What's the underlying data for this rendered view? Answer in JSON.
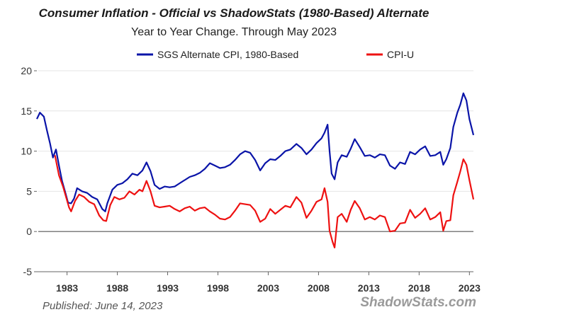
{
  "chart_data": {
    "type": "line",
    "title": "Consumer Inflation - Official vs ShadowStats (1980-Based) Alternate",
    "subtitle": "Year to Year Change. Through May 2023",
    "published": "Published: June 14, 2023",
    "watermark": "ShadowStats.com",
    "xlim": [
      1980.0,
      2023.4
    ],
    "ylim": [
      -5,
      20
    ],
    "yticks": [
      "-5",
      "0",
      "5",
      "10",
      "15",
      "20"
    ],
    "xticks": [
      "1983",
      "1988",
      "1993",
      "1998",
      "2003",
      "2008",
      "2013",
      "2018",
      "2023"
    ],
    "grid": true,
    "legend_position": "top",
    "series": [
      {
        "name": "SGS Alternate CPI, 1980-Based",
        "color": "#0a14a8",
        "points": [
          [
            1980.0,
            14.0
          ],
          [
            1980.3,
            14.8
          ],
          [
            1980.7,
            14.3
          ],
          [
            1981.0,
            12.6
          ],
          [
            1981.3,
            11.0
          ],
          [
            1981.6,
            9.2
          ],
          [
            1981.9,
            10.2
          ],
          [
            1982.2,
            8.2
          ],
          [
            1982.5,
            6.3
          ],
          [
            1982.8,
            5.0
          ],
          [
            1983.1,
            3.6
          ],
          [
            1983.4,
            3.5
          ],
          [
            1983.7,
            4.1
          ],
          [
            1984.0,
            5.4
          ],
          [
            1984.5,
            5.0
          ],
          [
            1985.0,
            4.8
          ],
          [
            1985.5,
            4.3
          ],
          [
            1986.0,
            4.0
          ],
          [
            1986.5,
            2.8
          ],
          [
            1986.8,
            2.5
          ],
          [
            1987.0,
            3.5
          ],
          [
            1987.5,
            5.2
          ],
          [
            1988.0,
            5.8
          ],
          [
            1988.5,
            6.0
          ],
          [
            1989.0,
            6.5
          ],
          [
            1989.5,
            7.2
          ],
          [
            1990.0,
            7.0
          ],
          [
            1990.5,
            7.6
          ],
          [
            1990.9,
            8.6
          ],
          [
            1991.3,
            7.5
          ],
          [
            1991.7,
            5.8
          ],
          [
            1992.2,
            5.3
          ],
          [
            1992.7,
            5.6
          ],
          [
            1993.2,
            5.5
          ],
          [
            1993.7,
            5.6
          ],
          [
            1994.2,
            6.0
          ],
          [
            1994.7,
            6.4
          ],
          [
            1995.2,
            6.8
          ],
          [
            1995.7,
            7.0
          ],
          [
            1996.2,
            7.3
          ],
          [
            1996.7,
            7.8
          ],
          [
            1997.2,
            8.5
          ],
          [
            1997.7,
            8.2
          ],
          [
            1998.2,
            7.9
          ],
          [
            1998.7,
            8.0
          ],
          [
            1999.2,
            8.3
          ],
          [
            1999.7,
            8.9
          ],
          [
            2000.2,
            9.6
          ],
          [
            2000.7,
            10.0
          ],
          [
            2001.2,
            9.8
          ],
          [
            2001.7,
            8.9
          ],
          [
            2002.2,
            7.6
          ],
          [
            2002.7,
            8.5
          ],
          [
            2003.2,
            9.0
          ],
          [
            2003.7,
            8.9
          ],
          [
            2004.2,
            9.4
          ],
          [
            2004.7,
            10.0
          ],
          [
            2005.2,
            10.2
          ],
          [
            2005.8,
            10.9
          ],
          [
            2006.3,
            10.4
          ],
          [
            2006.8,
            9.6
          ],
          [
            2007.3,
            10.2
          ],
          [
            2007.8,
            11.0
          ],
          [
            2008.3,
            11.6
          ],
          [
            2008.6,
            12.3
          ],
          [
            2008.9,
            13.3
          ],
          [
            2009.1,
            10.0
          ],
          [
            2009.3,
            7.2
          ],
          [
            2009.6,
            6.5
          ],
          [
            2009.9,
            8.6
          ],
          [
            2010.3,
            9.5
          ],
          [
            2010.8,
            9.3
          ],
          [
            2011.2,
            10.3
          ],
          [
            2011.6,
            11.5
          ],
          [
            2012.1,
            10.5
          ],
          [
            2012.6,
            9.4
          ],
          [
            2013.1,
            9.5
          ],
          [
            2013.6,
            9.2
          ],
          [
            2014.1,
            9.6
          ],
          [
            2014.6,
            9.5
          ],
          [
            2015.1,
            8.2
          ],
          [
            2015.6,
            7.8
          ],
          [
            2016.1,
            8.6
          ],
          [
            2016.6,
            8.4
          ],
          [
            2017.1,
            9.9
          ],
          [
            2017.6,
            9.6
          ],
          [
            2018.1,
            10.2
          ],
          [
            2018.6,
            10.6
          ],
          [
            2019.1,
            9.4
          ],
          [
            2019.6,
            9.5
          ],
          [
            2020.1,
            9.9
          ],
          [
            2020.4,
            8.3
          ],
          [
            2020.7,
            9.0
          ],
          [
            2021.1,
            10.4
          ],
          [
            2021.4,
            13.0
          ],
          [
            2021.8,
            14.8
          ],
          [
            2022.1,
            15.8
          ],
          [
            2022.4,
            17.2
          ],
          [
            2022.7,
            16.3
          ],
          [
            2023.0,
            14.0
          ],
          [
            2023.4,
            12.0
          ]
        ]
      },
      {
        "name": "CPI-U",
        "color": "#ee1111",
        "points": [
          [
            1981.8,
            9.5
          ],
          [
            1982.2,
            7.0
          ],
          [
            1982.6,
            5.6
          ],
          [
            1982.9,
            4.3
          ],
          [
            1983.2,
            3.0
          ],
          [
            1983.4,
            2.5
          ],
          [
            1983.8,
            3.8
          ],
          [
            1984.2,
            4.6
          ],
          [
            1984.7,
            4.3
          ],
          [
            1985.2,
            3.7
          ],
          [
            1985.7,
            3.4
          ],
          [
            1986.2,
            2.0
          ],
          [
            1986.6,
            1.4
          ],
          [
            1986.9,
            1.3
          ],
          [
            1987.3,
            3.3
          ],
          [
            1987.7,
            4.3
          ],
          [
            1988.2,
            4.0
          ],
          [
            1988.7,
            4.2
          ],
          [
            1989.2,
            5.0
          ],
          [
            1989.7,
            4.6
          ],
          [
            1990.2,
            5.2
          ],
          [
            1990.5,
            5.0
          ],
          [
            1990.9,
            6.3
          ],
          [
            1991.3,
            5.0
          ],
          [
            1991.7,
            3.2
          ],
          [
            1992.2,
            3.0
          ],
          [
            1992.7,
            3.1
          ],
          [
            1993.2,
            3.2
          ],
          [
            1993.7,
            2.8
          ],
          [
            1994.2,
            2.5
          ],
          [
            1994.7,
            2.9
          ],
          [
            1995.2,
            3.1
          ],
          [
            1995.7,
            2.6
          ],
          [
            1996.2,
            2.9
          ],
          [
            1996.7,
            3.0
          ],
          [
            1997.2,
            2.5
          ],
          [
            1997.7,
            2.1
          ],
          [
            1998.2,
            1.6
          ],
          [
            1998.7,
            1.5
          ],
          [
            1999.2,
            1.8
          ],
          [
            1999.7,
            2.6
          ],
          [
            2000.2,
            3.5
          ],
          [
            2000.7,
            3.4
          ],
          [
            2001.2,
            3.3
          ],
          [
            2001.7,
            2.6
          ],
          [
            2002.2,
            1.2
          ],
          [
            2002.7,
            1.6
          ],
          [
            2003.2,
            2.8
          ],
          [
            2003.7,
            2.2
          ],
          [
            2004.2,
            2.7
          ],
          [
            2004.7,
            3.2
          ],
          [
            2005.2,
            3.0
          ],
          [
            2005.8,
            4.3
          ],
          [
            2006.3,
            3.6
          ],
          [
            2006.8,
            1.7
          ],
          [
            2007.3,
            2.6
          ],
          [
            2007.8,
            3.7
          ],
          [
            2008.3,
            4.0
          ],
          [
            2008.6,
            5.4
          ],
          [
            2008.9,
            3.7
          ],
          [
            2009.1,
            0.1
          ],
          [
            2009.4,
            -1.3
          ],
          [
            2009.6,
            -2.0
          ],
          [
            2009.9,
            1.8
          ],
          [
            2010.3,
            2.2
          ],
          [
            2010.8,
            1.2
          ],
          [
            2011.2,
            2.7
          ],
          [
            2011.6,
            3.8
          ],
          [
            2012.1,
            2.9
          ],
          [
            2012.6,
            1.5
          ],
          [
            2013.1,
            1.8
          ],
          [
            2013.6,
            1.5
          ],
          [
            2014.1,
            2.0
          ],
          [
            2014.6,
            1.8
          ],
          [
            2015.1,
            0.0
          ],
          [
            2015.6,
            0.1
          ],
          [
            2016.1,
            1.0
          ],
          [
            2016.6,
            1.1
          ],
          [
            2017.1,
            2.7
          ],
          [
            2017.6,
            1.7
          ],
          [
            2018.1,
            2.2
          ],
          [
            2018.6,
            2.9
          ],
          [
            2019.1,
            1.5
          ],
          [
            2019.6,
            1.8
          ],
          [
            2020.1,
            2.4
          ],
          [
            2020.4,
            0.1
          ],
          [
            2020.7,
            1.3
          ],
          [
            2021.1,
            1.4
          ],
          [
            2021.4,
            4.5
          ],
          [
            2021.8,
            6.2
          ],
          [
            2022.1,
            7.5
          ],
          [
            2022.4,
            9.0
          ],
          [
            2022.7,
            8.3
          ],
          [
            2023.0,
            6.4
          ],
          [
            2023.4,
            4.0
          ]
        ]
      }
    ]
  }
}
